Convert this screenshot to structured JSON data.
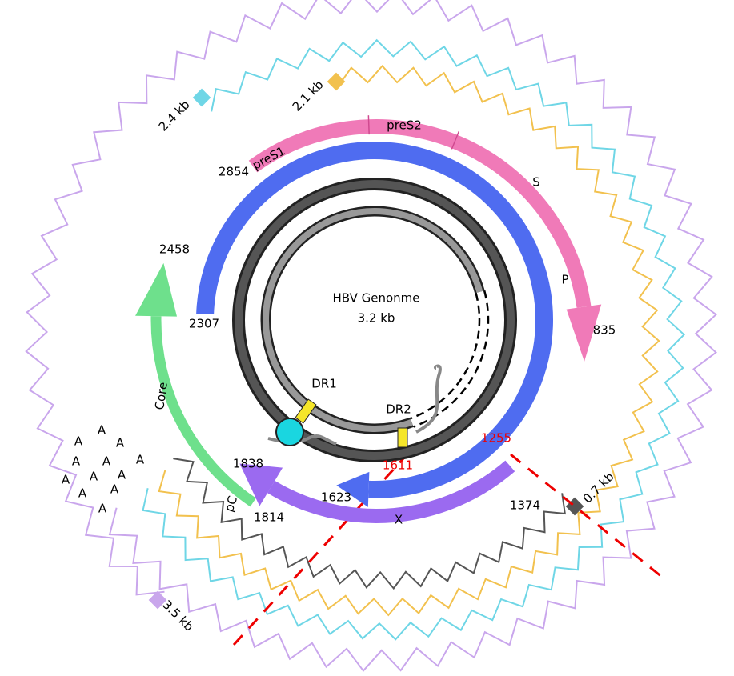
{
  "genome": {
    "title": "HBV Genonme",
    "size": "3.2 kb"
  },
  "regions": [
    "preS1",
    "preS2",
    "S",
    "P",
    "Core",
    "pC",
    "X"
  ],
  "repeats": [
    "DR1",
    "DR2"
  ],
  "positions": [
    "2854",
    "835",
    "2458",
    "2307",
    "1838",
    "1814",
    "1623",
    "1374"
  ],
  "cleavage_sites": [
    "1255",
    "1611"
  ],
  "transcripts": [
    "3.5 kb",
    "2.4 kb",
    "2.1 kb",
    "0.7 kb"
  ],
  "poly_a": [
    "A",
    "A",
    "A",
    "A",
    "A",
    "A",
    "A",
    "A",
    "A",
    "A",
    "A",
    "A"
  ]
}
